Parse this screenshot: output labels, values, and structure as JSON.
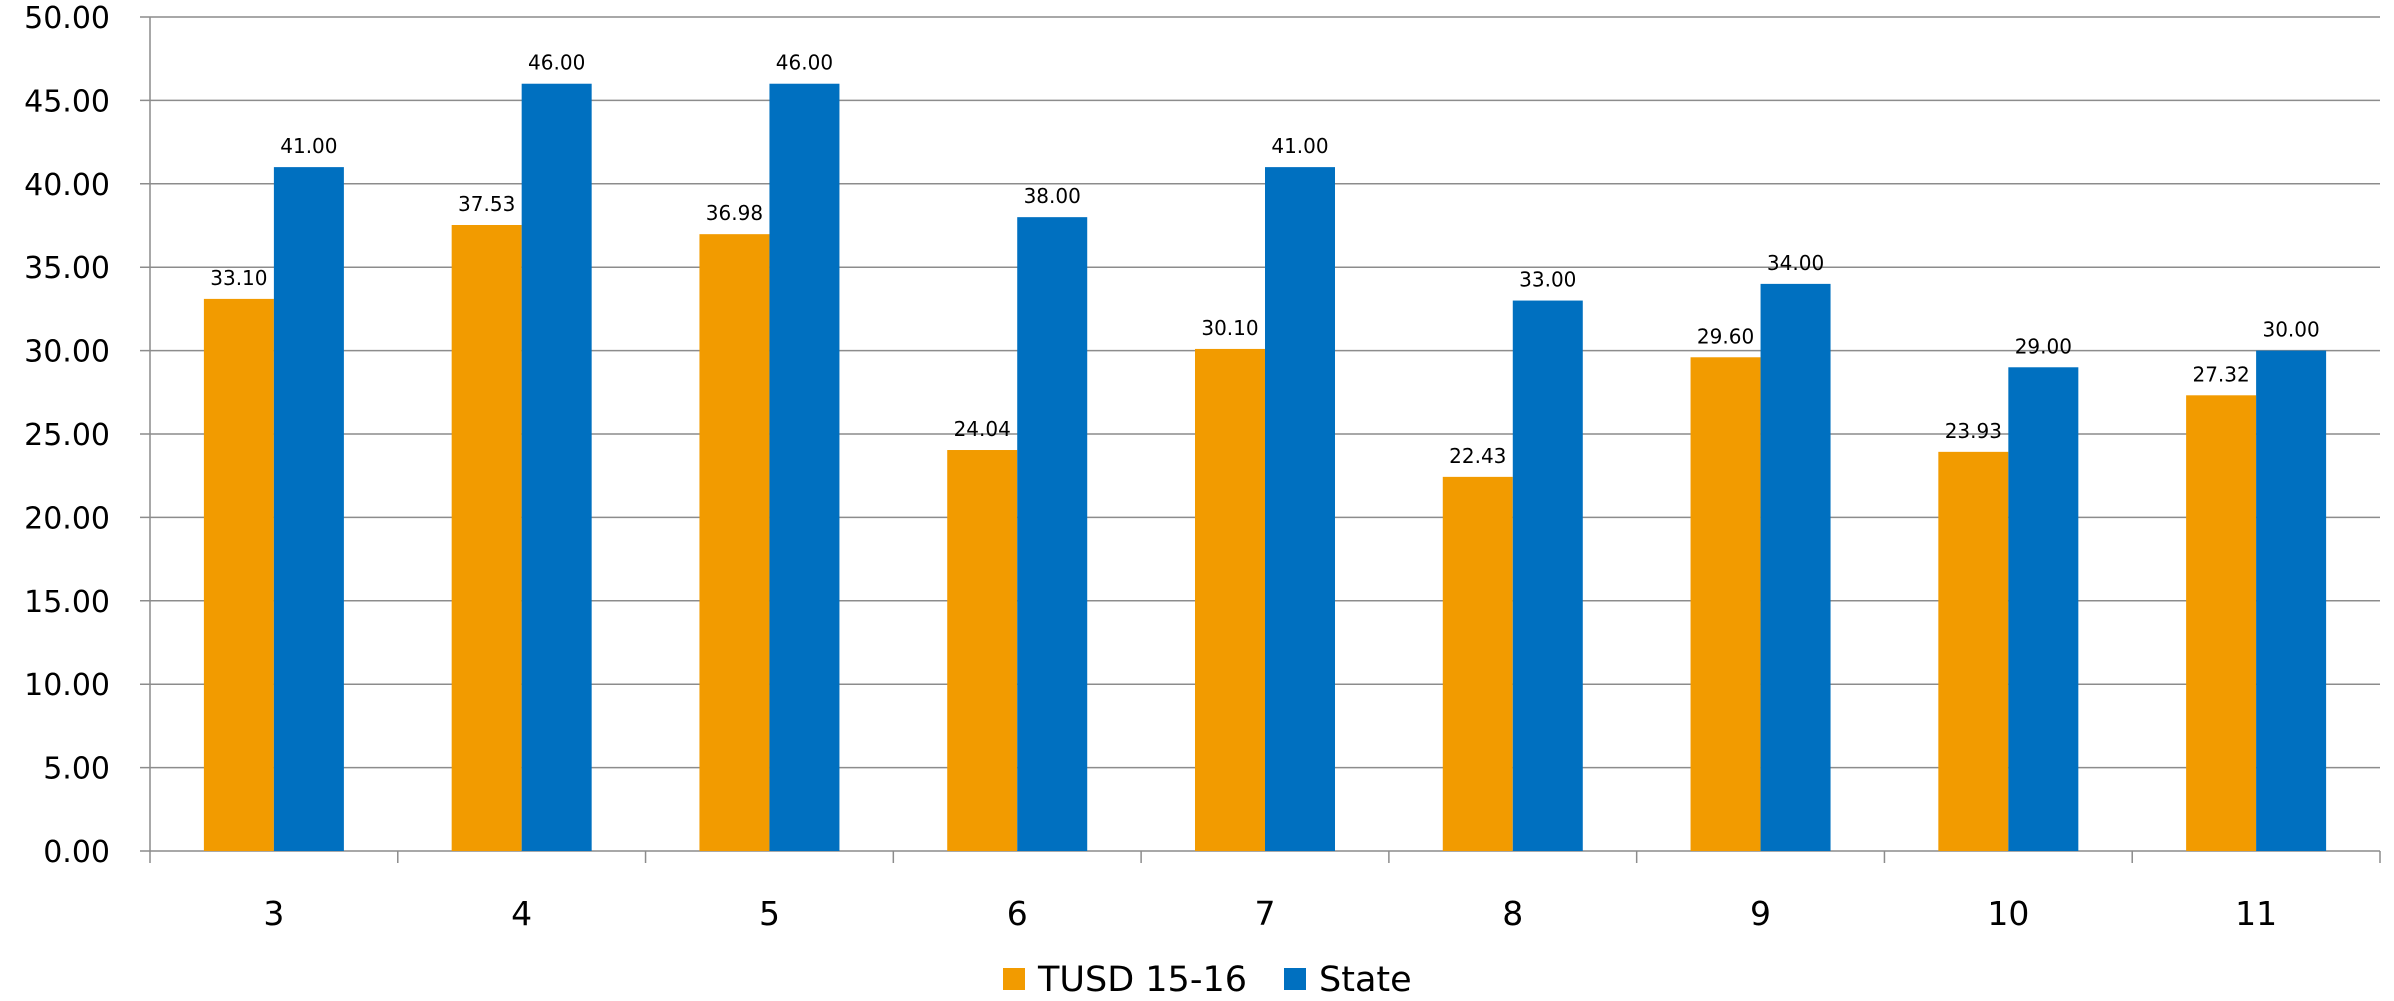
{
  "chart_data": {
    "type": "bar",
    "categories": [
      "3",
      "4",
      "5",
      "6",
      "7",
      "8",
      "9",
      "10",
      "11"
    ],
    "series": [
      {
        "name": "TUSD 15-16",
        "color": "#F29B00",
        "values": [
          33.1,
          37.53,
          36.98,
          24.04,
          30.1,
          22.43,
          29.6,
          23.93,
          27.32
        ],
        "labels": [
          "33.10",
          "37.53",
          "36.98",
          "24.04",
          "30.10",
          "22.43",
          "29.60",
          "23.93",
          "27.32"
        ]
      },
      {
        "name": "State",
        "color": "#0070C0",
        "values": [
          41.0,
          46.0,
          46.0,
          38.0,
          41.0,
          33.0,
          34.0,
          29.0,
          30.0
        ],
        "labels": [
          "41.00",
          "46.00",
          "46.00",
          "38.00",
          "41.00",
          "33.00",
          "34.00",
          "29.00",
          "30.00"
        ]
      }
    ],
    "title": "",
    "xlabel": "",
    "ylabel": "",
    "ylim": [
      0,
      50
    ],
    "yticks": [
      "0.00",
      "5.00",
      "10.00",
      "15.00",
      "20.00",
      "25.00",
      "30.00",
      "35.00",
      "40.00",
      "45.00",
      "50.00"
    ],
    "grid": true,
    "legend_position": "bottom-center"
  }
}
